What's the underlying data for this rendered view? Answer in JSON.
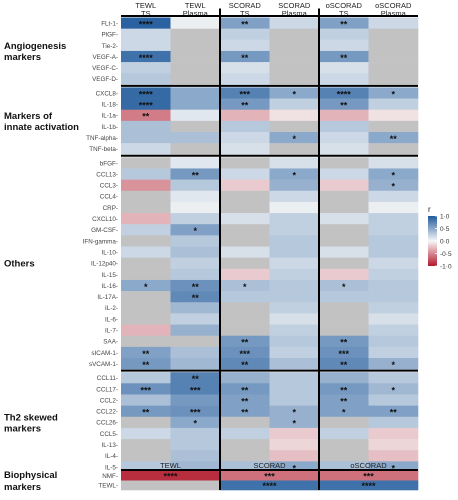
{
  "chart_data": {
    "type": "heatmap",
    "title": "",
    "columns": [
      {
        "line1": "TEWL",
        "line2": "TS"
      },
      {
        "line1": "TEWL",
        "line2": "Plasma"
      },
      {
        "line1": "SCORAD",
        "line2": "TS"
      },
      {
        "line1": "SCORAD",
        "line2": "Plasma"
      },
      {
        "line1": "oSCORAD",
        "line2": "TS"
      },
      {
        "line1": "oSCORAD",
        "line2": "Plasma"
      }
    ],
    "groups": [
      {
        "name_lines": [
          "Angiogenesis",
          "markers"
        ],
        "rows": [
          "FLt-1",
          "PlGF",
          "Tie-2",
          "VEGF-A",
          "VEGF-C",
          "VEGF-D"
        ]
      },
      {
        "name_lines": [
          "Markers of",
          "innate activation"
        ],
        "rows": [
          "CXCL8",
          "IL-18",
          "IL-1a",
          "IL-1b",
          "TNF-alpha",
          "TNF-beta"
        ]
      },
      {
        "name_lines": [
          "Others"
        ],
        "rows": [
          "bFGF",
          "CCL13",
          "CCL3",
          "CCL4",
          "CRP",
          "CXCL10",
          "GM-CSF",
          "IFN-gamma",
          "IL-10",
          "IL-12p40",
          "IL-15",
          "IL-16",
          "IL-17A",
          "IL-2",
          "IL-6",
          "IL-7",
          "SAA",
          "sICAM-1",
          "sVCAM-1"
        ]
      },
      {
        "name_lines": [
          "Th2 skewed",
          "markers"
        ],
        "rows": [
          "CCL11",
          "CCL17",
          "CCL2",
          "CCL22",
          "CCL26",
          "CCL5",
          "IL-13",
          "IL-4",
          "IL-5"
        ]
      }
    ],
    "values": [
      [
        0.95,
        0.05,
        0.55,
        0.2,
        0.55,
        0.2
      ],
      [
        0.2,
        -0.2,
        0.25,
        -0.25,
        0.25,
        -0.2
      ],
      [
        0.2,
        -0.4,
        0.2,
        -0.2,
        0.2,
        -0.2
      ],
      [
        0.85,
        -0.25,
        0.6,
        0.05,
        0.6,
        0.05
      ],
      [
        0.25,
        0.2,
        0.15,
        0.05,
        0.15,
        0.05
      ],
      [
        0.3,
        0.2,
        0.2,
        0.1,
        0.2,
        0.1
      ],
      [
        0.9,
        0.5,
        0.75,
        0.5,
        0.75,
        0.5
      ],
      [
        0.9,
        0.5,
        0.6,
        0.25,
        0.6,
        0.25
      ],
      [
        -0.55,
        0.1,
        -0.3,
        -0.1,
        -0.3,
        -0.1
      ],
      [
        0.35,
        0.2,
        0.3,
        0.15,
        0.3,
        0.15
      ],
      [
        0.35,
        0.35,
        0.2,
        0.5,
        0.2,
        0.5
      ],
      [
        0.2,
        -0.05,
        0.15,
        -0.1,
        0.15,
        -0.1
      ],
      [
        -0.3,
        0.1,
        -0.2,
        0.15,
        -0.2,
        0.15
      ],
      [
        0.3,
        0.6,
        0.2,
        0.5,
        0.2,
        0.5
      ],
      [
        -0.45,
        0.3,
        -0.2,
        0.45,
        -0.2,
        0.45
      ],
      [
        -0.5,
        0.1,
        -0.25,
        0.2,
        -0.25,
        0.2
      ],
      [
        -0.3,
        0.05,
        -0.2,
        0.05,
        -0.2,
        0.05
      ],
      [
        -0.3,
        0.25,
        0.15,
        0.25,
        0.15,
        0.25
      ],
      [
        0.25,
        0.55,
        0.2,
        0.25,
        0.2,
        0.25
      ],
      [
        -0.25,
        0.3,
        0.1,
        0.3,
        0.1,
        0.3
      ],
      [
        0.2,
        0.35,
        0.15,
        0.3,
        0.15,
        0.3
      ],
      [
        -0.2,
        0.25,
        -0.15,
        0.2,
        -0.15,
        0.2
      ],
      [
        -0.3,
        0.3,
        -0.2,
        0.25,
        -0.2,
        0.25
      ],
      [
        0.5,
        0.65,
        0.35,
        0.3,
        0.35,
        0.3
      ],
      [
        0.35,
        0.7,
        0.3,
        0.3,
        0.3,
        0.3
      ],
      [
        0.3,
        0.4,
        0.25,
        0.25,
        0.25,
        0.25
      ],
      [
        0.2,
        0.25,
        0.2,
        0.15,
        0.2,
        0.15
      ],
      [
        -0.3,
        0.45,
        -0.15,
        0.25,
        -0.15,
        0.25
      ],
      [
        0.35,
        0.5,
        0.6,
        0.3,
        0.6,
        0.3
      ],
      [
        0.55,
        0.35,
        0.65,
        0.25,
        0.65,
        0.25
      ],
      [
        0.6,
        0.4,
        0.7,
        0.35,
        0.7,
        0.45
      ],
      [
        0.3,
        0.75,
        0.45,
        0.3,
        0.45,
        0.3
      ],
      [
        0.65,
        0.75,
        0.6,
        0.3,
        0.6,
        0.4
      ],
      [
        0.35,
        0.6,
        0.55,
        0.3,
        0.55,
        0.3
      ],
      [
        0.6,
        0.65,
        0.55,
        0.45,
        0.55,
        0.55
      ],
      [
        0.3,
        0.5,
        0.35,
        0.45,
        0.35,
        0.3
      ],
      [
        0.2,
        0.3,
        0.25,
        -0.2,
        0.25,
        -0.2
      ],
      [
        0.2,
        0.3,
        0.15,
        -0.15,
        0.15,
        -0.15
      ],
      [
        0.25,
        0.35,
        -0.15,
        -0.25,
        -0.15,
        -0.25
      ],
      [
        0.3,
        0.4,
        0.35,
        0.5,
        0.35,
        0.5
      ]
    ],
    "missing": [
      [
        1,
        1
      ],
      [
        1,
        3
      ],
      [
        1,
        5
      ],
      [
        2,
        1
      ],
      [
        2,
        3
      ],
      [
        2,
        5
      ],
      [
        3,
        1
      ],
      [
        3,
        3
      ],
      [
        3,
        5
      ],
      [
        4,
        1
      ],
      [
        4,
        3
      ],
      [
        4,
        5
      ],
      [
        5,
        1
      ],
      [
        5,
        3
      ],
      [
        5,
        5
      ],
      [
        9,
        1
      ],
      [
        9,
        3
      ],
      [
        9,
        5
      ],
      [
        11,
        1
      ],
      [
        11,
        3
      ],
      [
        11,
        5
      ],
      [
        12,
        0
      ],
      [
        12,
        2
      ],
      [
        12,
        4
      ],
      [
        15,
        0
      ],
      [
        15,
        2
      ],
      [
        15,
        4
      ],
      [
        16,
        0
      ],
      [
        16,
        2
      ],
      [
        16,
        4
      ],
      [
        18,
        2
      ],
      [
        18,
        4
      ],
      [
        19,
        0
      ],
      [
        19,
        2
      ],
      [
        19,
        4
      ],
      [
        21,
        0
      ],
      [
        21,
        2
      ],
      [
        21,
        4
      ],
      [
        22,
        0
      ],
      [
        24,
        0
      ],
      [
        25,
        0
      ],
      [
        25,
        2
      ],
      [
        25,
        4
      ],
      [
        26,
        0
      ],
      [
        26,
        2
      ],
      [
        26,
        4
      ],
      [
        27,
        2
      ],
      [
        27,
        4
      ],
      [
        28,
        0
      ],
      [
        28,
        1
      ],
      [
        35,
        0
      ],
      [
        35,
        2
      ],
      [
        35,
        4
      ],
      [
        37,
        0
      ],
      [
        37,
        2
      ],
      [
        37,
        4
      ],
      [
        38,
        0
      ],
      [
        38,
        2
      ],
      [
        38,
        4
      ]
    ],
    "stars": [
      {
        "row": 0,
        "col": 0,
        "label": "****"
      },
      {
        "row": 0,
        "col": 2,
        "label": "**"
      },
      {
        "row": 0,
        "col": 4,
        "label": "**"
      },
      {
        "row": 3,
        "col": 0,
        "label": "****"
      },
      {
        "row": 3,
        "col": 2,
        "label": "**"
      },
      {
        "row": 3,
        "col": 4,
        "label": "**"
      },
      {
        "row": 6,
        "col": 0,
        "label": "****"
      },
      {
        "row": 6,
        "col": 2,
        "label": "***"
      },
      {
        "row": 6,
        "col": 3,
        "label": "*"
      },
      {
        "row": 6,
        "col": 4,
        "label": "****"
      },
      {
        "row": 6,
        "col": 5,
        "label": "*"
      },
      {
        "row": 7,
        "col": 0,
        "label": "****"
      },
      {
        "row": 7,
        "col": 2,
        "label": "**"
      },
      {
        "row": 7,
        "col": 4,
        "label": "**"
      },
      {
        "row": 8,
        "col": 0,
        "label": "**"
      },
      {
        "row": 10,
        "col": 3,
        "label": "*"
      },
      {
        "row": 10,
        "col": 5,
        "label": "**"
      },
      {
        "row": 13,
        "col": 1,
        "label": "**"
      },
      {
        "row": 13,
        "col": 3,
        "label": "*"
      },
      {
        "row": 13,
        "col": 5,
        "label": "*"
      },
      {
        "row": 14,
        "col": 5,
        "label": "*"
      },
      {
        "row": 18,
        "col": 1,
        "label": "*"
      },
      {
        "row": 23,
        "col": 0,
        "label": "*"
      },
      {
        "row": 23,
        "col": 1,
        "label": "**"
      },
      {
        "row": 23,
        "col": 2,
        "label": "*"
      },
      {
        "row": 23,
        "col": 4,
        "label": "*"
      },
      {
        "row": 24,
        "col": 1,
        "label": "**"
      },
      {
        "row": 28,
        "col": 2,
        "label": "**"
      },
      {
        "row": 28,
        "col": 4,
        "label": "**"
      },
      {
        "row": 29,
        "col": 0,
        "label": "**"
      },
      {
        "row": 29,
        "col": 2,
        "label": "***"
      },
      {
        "row": 29,
        "col": 4,
        "label": "***"
      },
      {
        "row": 30,
        "col": 0,
        "label": "**"
      },
      {
        "row": 30,
        "col": 2,
        "label": "**"
      },
      {
        "row": 30,
        "col": 4,
        "label": "**"
      },
      {
        "row": 30,
        "col": 5,
        "label": "*"
      },
      {
        "row": 31,
        "col": 1,
        "label": "**"
      },
      {
        "row": 32,
        "col": 0,
        "label": "***"
      },
      {
        "row": 32,
        "col": 1,
        "label": "***"
      },
      {
        "row": 32,
        "col": 2,
        "label": "**"
      },
      {
        "row": 32,
        "col": 4,
        "label": "**"
      },
      {
        "row": 32,
        "col": 5,
        "label": "*"
      },
      {
        "row": 33,
        "col": 2,
        "label": "**"
      },
      {
        "row": 33,
        "col": 4,
        "label": "**"
      },
      {
        "row": 34,
        "col": 0,
        "label": "**"
      },
      {
        "row": 34,
        "col": 1,
        "label": "***"
      },
      {
        "row": 34,
        "col": 2,
        "label": "**"
      },
      {
        "row": 34,
        "col": 3,
        "label": "*"
      },
      {
        "row": 34,
        "col": 4,
        "label": "*"
      },
      {
        "row": 34,
        "col": 5,
        "label": "**"
      },
      {
        "row": 35,
        "col": 1,
        "label": "*"
      },
      {
        "row": 35,
        "col": 3,
        "label": "*"
      },
      {
        "row": 39,
        "col": 3,
        "label": "*"
      },
      {
        "row": 39,
        "col": 5,
        "label": "*"
      }
    ],
    "biophysical": {
      "name_lines": [
        "Biophysical",
        "markers"
      ],
      "columns": [
        "TEWL",
        "SCORAD",
        "oSCORAD"
      ],
      "rows": [
        "NMF",
        "TEWL"
      ],
      "values": [
        [
          -0.9,
          -0.6,
          -0.6
        ],
        [
          0.05,
          0.85,
          0.85
        ]
      ],
      "missing": [
        [
          1,
          0
        ]
      ],
      "stars": [
        {
          "row": 0,
          "col": 0,
          "label": "****"
        },
        {
          "row": 0,
          "col": 1,
          "label": "***"
        },
        {
          "row": 0,
          "col": 2,
          "label": "***"
        },
        {
          "row": 1,
          "col": 1,
          "label": "****"
        },
        {
          "row": 1,
          "col": 2,
          "label": "****"
        }
      ]
    },
    "legend": {
      "title": "r",
      "ticks": [
        1.0,
        0.5,
        0.0,
        -0.5,
        -1.0
      ],
      "tick_labels": [
        "1·0",
        "0·5",
        "0·0",
        "-0·5",
        "-1·0"
      ],
      "range": [
        -1,
        1
      ],
      "placement": "right"
    },
    "colors": {
      "positive": "#1f5a9c",
      "negative": "#b2182b",
      "zero": "#f7f7f7",
      "missing": "#c2c2c2",
      "grid_line": "#000000"
    }
  }
}
